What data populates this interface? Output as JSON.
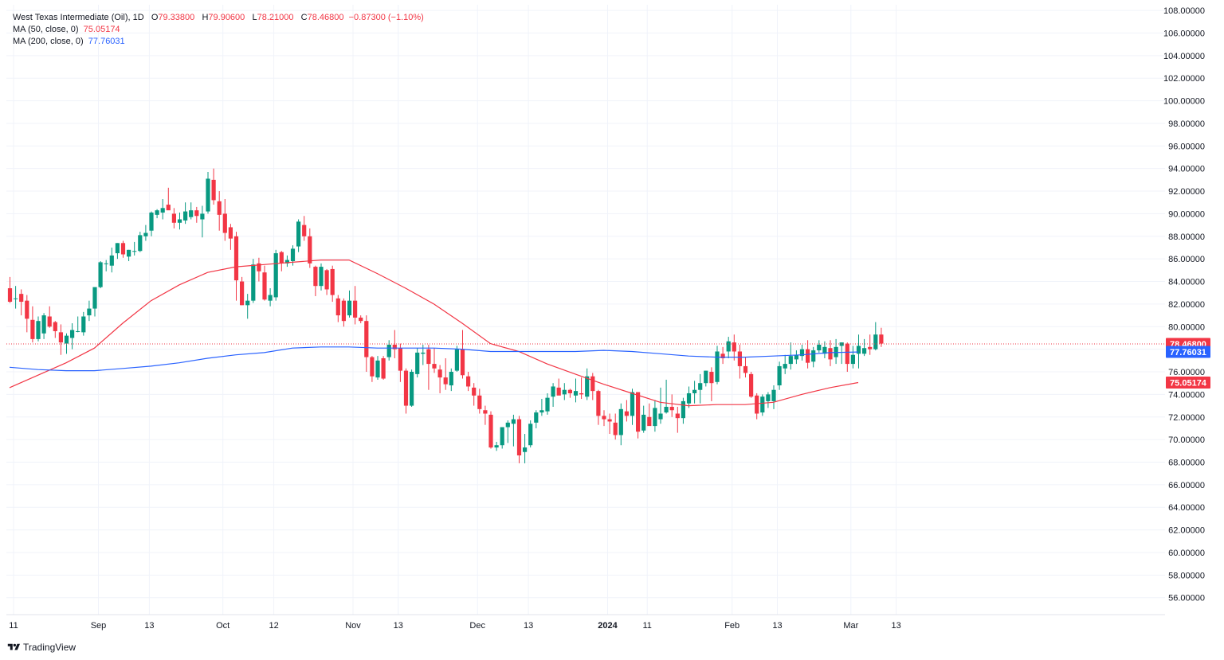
{
  "legend": {
    "symbol": "West Texas Intermediate (Oil), 1D",
    "open_label": "O",
    "open": "79.33800",
    "high_label": "H",
    "high": "79.90600",
    "low_label": "L",
    "low": "78.21000",
    "close_label": "C",
    "close": "78.46800",
    "change": "−0.87300 (−1.10%)",
    "ma50_label": "MA (50, close, 0)",
    "ma50_value": "75.05174",
    "ma200_label": "MA (200, close, 0)",
    "ma200_value": "77.76031"
  },
  "branding": {
    "logo_text": "TradingView"
  },
  "colors": {
    "up": "#089981",
    "down": "#f23645",
    "ma50": "#f23645",
    "ma200": "#2962ff",
    "grid": "#f0f3fa",
    "text": "#131722"
  },
  "chart_data": {
    "type": "candlestick",
    "title": "West Texas Intermediate (Oil), 1D",
    "ylim": [
      54.5,
      108.5
    ],
    "y_ticks": [
      "56.00000",
      "58.00000",
      "60.00000",
      "62.00000",
      "64.00000",
      "66.00000",
      "68.00000",
      "70.00000",
      "72.00000",
      "74.00000",
      "76.00000",
      "78.00000",
      "80.00000",
      "82.00000",
      "84.00000",
      "86.00000",
      "88.00000",
      "90.00000",
      "92.00000",
      "94.00000",
      "96.00000",
      "98.00000",
      "100.00000",
      "102.00000",
      "104.00000",
      "106.00000",
      "108.00000"
    ],
    "x_ticks": [
      {
        "label": "11",
        "bar": 0,
        "bold": false
      },
      {
        "label": "Sep",
        "bar": 15,
        "bold": false
      },
      {
        "label": "13",
        "bar": 24,
        "bold": false
      },
      {
        "label": "Oct",
        "bar": 37,
        "bold": false
      },
      {
        "label": "12",
        "bar": 46,
        "bold": false
      },
      {
        "label": "Nov",
        "bar": 60,
        "bold": false
      },
      {
        "label": "13",
        "bar": 68,
        "bold": false
      },
      {
        "label": "Dec",
        "bar": 82,
        "bold": false
      },
      {
        "label": "13",
        "bar": 91,
        "bold": false
      },
      {
        "label": "2024",
        "bar": 105,
        "bold": true
      },
      {
        "label": "11",
        "bar": 112,
        "bold": false
      },
      {
        "label": "Feb",
        "bar": 127,
        "bold": false
      },
      {
        "label": "13",
        "bar": 135,
        "bold": false
      },
      {
        "label": "Mar",
        "bar": 148,
        "bold": false
      },
      {
        "label": "13",
        "bar": 156,
        "bold": false
      }
    ],
    "candles": [
      {
        "o": 83.4,
        "h": 84.4,
        "l": 82.1,
        "c": 82.2
      },
      {
        "o": 82.5,
        "h": 83.6,
        "l": 81.6,
        "c": 82.5
      },
      {
        "o": 82.9,
        "h": 83.3,
        "l": 81.0,
        "c": 82.2
      },
      {
        "o": 82.3,
        "h": 82.8,
        "l": 79.5,
        "c": 80.7
      },
      {
        "o": 80.6,
        "h": 81.8,
        "l": 78.6,
        "c": 78.9
      },
      {
        "o": 78.9,
        "h": 80.9,
        "l": 78.7,
        "c": 80.5
      },
      {
        "o": 79.4,
        "h": 81.2,
        "l": 78.9,
        "c": 81.0
      },
      {
        "o": 80.9,
        "h": 81.8,
        "l": 79.9,
        "c": 80.0
      },
      {
        "o": 80.4,
        "h": 80.5,
        "l": 79.0,
        "c": 79.6
      },
      {
        "o": 79.5,
        "h": 80.2,
        "l": 77.5,
        "c": 78.6
      },
      {
        "o": 78.5,
        "h": 79.4,
        "l": 77.6,
        "c": 79.2
      },
      {
        "o": 79.0,
        "h": 80.3,
        "l": 78.0,
        "c": 79.7
      },
      {
        "o": 79.6,
        "h": 80.9,
        "l": 79.5,
        "c": 79.6
      },
      {
        "o": 79.5,
        "h": 81.3,
        "l": 79.2,
        "c": 80.9
      },
      {
        "o": 81.0,
        "h": 82.3,
        "l": 80.5,
        "c": 81.6
      },
      {
        "o": 81.6,
        "h": 83.1,
        "l": 80.9,
        "c": 83.5
      },
      {
        "o": 83.5,
        "h": 85.8,
        "l": 83.4,
        "c": 85.7
      },
      {
        "o": 85.6,
        "h": 85.9,
        "l": 84.9,
        "c": 85.6
      },
      {
        "o": 85.4,
        "h": 87.0,
        "l": 84.8,
        "c": 86.3
      },
      {
        "o": 86.5,
        "h": 87.4,
        "l": 86.0,
        "c": 87.4
      },
      {
        "o": 87.4,
        "h": 87.6,
        "l": 86.1,
        "c": 86.4
      },
      {
        "o": 86.2,
        "h": 86.8,
        "l": 85.8,
        "c": 86.8
      },
      {
        "o": 86.7,
        "h": 87.5,
        "l": 86.3,
        "c": 86.7
      },
      {
        "o": 86.7,
        "h": 88.4,
        "l": 86.6,
        "c": 88.1
      },
      {
        "o": 88.0,
        "h": 89.0,
        "l": 87.6,
        "c": 88.3
      },
      {
        "o": 88.5,
        "h": 90.2,
        "l": 88.0,
        "c": 90.1
      },
      {
        "o": 89.9,
        "h": 90.4,
        "l": 89.6,
        "c": 90.3
      },
      {
        "o": 90.1,
        "h": 91.3,
        "l": 89.5,
        "c": 90.5
      },
      {
        "o": 90.8,
        "h": 92.3,
        "l": 90.5,
        "c": 90.3
      },
      {
        "o": 90.0,
        "h": 90.5,
        "l": 88.7,
        "c": 89.2
      },
      {
        "o": 89.2,
        "h": 90.1,
        "l": 88.6,
        "c": 89.5
      },
      {
        "o": 89.4,
        "h": 91.0,
        "l": 89.1,
        "c": 90.2
      },
      {
        "o": 89.7,
        "h": 91.0,
        "l": 89.5,
        "c": 90.3
      },
      {
        "o": 90.3,
        "h": 90.6,
        "l": 89.2,
        "c": 89.8
      },
      {
        "o": 89.5,
        "h": 90.7,
        "l": 87.9,
        "c": 90.0
      },
      {
        "o": 90.2,
        "h": 93.7,
        "l": 90.0,
        "c": 93.1
      },
      {
        "o": 93.0,
        "h": 94.0,
        "l": 90.8,
        "c": 91.2
      },
      {
        "o": 91.1,
        "h": 92.0,
        "l": 88.5,
        "c": 89.9
      },
      {
        "o": 90.0,
        "h": 91.3,
        "l": 87.6,
        "c": 88.3
      },
      {
        "o": 88.8,
        "h": 89.1,
        "l": 86.8,
        "c": 87.8
      },
      {
        "o": 88.0,
        "h": 88.4,
        "l": 82.3,
        "c": 84.1
      },
      {
        "o": 84.0,
        "h": 84.4,
        "l": 81.9,
        "c": 81.9
      },
      {
        "o": 81.9,
        "h": 82.9,
        "l": 80.7,
        "c": 82.3
      },
      {
        "o": 82.3,
        "h": 86.0,
        "l": 82.1,
        "c": 85.5
      },
      {
        "o": 85.6,
        "h": 86.1,
        "l": 84.0,
        "c": 84.9
      },
      {
        "o": 84.8,
        "h": 85.4,
        "l": 82.3,
        "c": 82.4
      },
      {
        "o": 82.3,
        "h": 83.4,
        "l": 81.8,
        "c": 82.8
      },
      {
        "o": 82.6,
        "h": 86.8,
        "l": 82.3,
        "c": 86.5
      },
      {
        "o": 86.6,
        "h": 86.7,
        "l": 84.9,
        "c": 85.6
      },
      {
        "o": 85.6,
        "h": 86.3,
        "l": 85.3,
        "c": 85.9
      },
      {
        "o": 85.8,
        "h": 87.2,
        "l": 85.4,
        "c": 86.9
      },
      {
        "o": 87.1,
        "h": 89.5,
        "l": 86.6,
        "c": 89.3
      },
      {
        "o": 89.0,
        "h": 89.8,
        "l": 87.6,
        "c": 88.0
      },
      {
        "o": 88.0,
        "h": 88.7,
        "l": 85.2,
        "c": 85.6
      },
      {
        "o": 85.3,
        "h": 85.4,
        "l": 82.7,
        "c": 83.6
      },
      {
        "o": 83.6,
        "h": 85.6,
        "l": 83.2,
        "c": 85.3
      },
      {
        "o": 85.0,
        "h": 85.1,
        "l": 82.8,
        "c": 83.3
      },
      {
        "o": 85.1,
        "h": 85.4,
        "l": 82.2,
        "c": 82.8
      },
      {
        "o": 82.5,
        "h": 82.8,
        "l": 80.4,
        "c": 81.0
      },
      {
        "o": 82.3,
        "h": 82.5,
        "l": 80.0,
        "c": 80.5
      },
      {
        "o": 81.0,
        "h": 83.2,
        "l": 80.8,
        "c": 82.3
      },
      {
        "o": 82.3,
        "h": 83.6,
        "l": 80.2,
        "c": 80.8
      },
      {
        "o": 80.8,
        "h": 81.0,
        "l": 80.3,
        "c": 80.5
      },
      {
        "o": 80.5,
        "h": 81.0,
        "l": 76.0,
        "c": 77.3
      },
      {
        "o": 77.3,
        "h": 77.4,
        "l": 75.1,
        "c": 75.6
      },
      {
        "o": 75.5,
        "h": 77.4,
        "l": 75.3,
        "c": 77.0
      },
      {
        "o": 77.2,
        "h": 77.4,
        "l": 75.3,
        "c": 75.4
      },
      {
        "o": 77.3,
        "h": 78.8,
        "l": 77.0,
        "c": 78.4
      },
      {
        "o": 78.4,
        "h": 79.7,
        "l": 77.2,
        "c": 78.0
      },
      {
        "o": 78.1,
        "h": 78.5,
        "l": 75.1,
        "c": 76.1
      },
      {
        "o": 76.1,
        "h": 76.3,
        "l": 72.3,
        "c": 73.0
      },
      {
        "o": 73.0,
        "h": 76.2,
        "l": 72.9,
        "c": 76.0
      },
      {
        "o": 75.8,
        "h": 78.1,
        "l": 75.5,
        "c": 77.7
      },
      {
        "o": 77.6,
        "h": 78.4,
        "l": 76.6,
        "c": 77.7
      },
      {
        "o": 78.0,
        "h": 78.4,
        "l": 74.4,
        "c": 76.7
      },
      {
        "o": 76.7,
        "h": 78.1,
        "l": 75.9,
        "c": 76.3
      },
      {
        "o": 76.2,
        "h": 76.6,
        "l": 74.1,
        "c": 75.5
      },
      {
        "o": 75.5,
        "h": 77.2,
        "l": 74.4,
        "c": 74.9
      },
      {
        "o": 74.8,
        "h": 76.3,
        "l": 74.3,
        "c": 76.0
      },
      {
        "o": 76.1,
        "h": 78.3,
        "l": 76.0,
        "c": 78.0
      },
      {
        "o": 78.0,
        "h": 79.7,
        "l": 75.4,
        "c": 75.7
      },
      {
        "o": 75.6,
        "h": 76.0,
        "l": 74.3,
        "c": 74.7
      },
      {
        "o": 74.6,
        "h": 75.0,
        "l": 73.0,
        "c": 73.9
      },
      {
        "o": 73.9,
        "h": 74.5,
        "l": 72.3,
        "c": 72.7
      },
      {
        "o": 72.6,
        "h": 73.0,
        "l": 71.3,
        "c": 72.3
      },
      {
        "o": 72.2,
        "h": 72.5,
        "l": 69.2,
        "c": 69.3
      },
      {
        "o": 69.3,
        "h": 69.8,
        "l": 69.0,
        "c": 69.5
      },
      {
        "o": 69.5,
        "h": 71.1,
        "l": 69.2,
        "c": 71.1
      },
      {
        "o": 71.1,
        "h": 71.7,
        "l": 69.7,
        "c": 71.5
      },
      {
        "o": 71.4,
        "h": 72.2,
        "l": 69.4,
        "c": 71.8
      },
      {
        "o": 71.8,
        "h": 72.1,
        "l": 67.9,
        "c": 68.6
      },
      {
        "o": 68.9,
        "h": 70.5,
        "l": 67.9,
        "c": 69.3
      },
      {
        "o": 69.5,
        "h": 71.7,
        "l": 69.3,
        "c": 71.4
      },
      {
        "o": 71.5,
        "h": 72.6,
        "l": 71.0,
        "c": 72.4
      },
      {
        "o": 72.4,
        "h": 73.6,
        "l": 72.1,
        "c": 72.6
      },
      {
        "o": 72.5,
        "h": 74.1,
        "l": 72.2,
        "c": 73.7
      },
      {
        "o": 73.8,
        "h": 75.0,
        "l": 72.9,
        "c": 74.7
      },
      {
        "o": 74.6,
        "h": 75.4,
        "l": 74.0,
        "c": 73.9
      },
      {
        "o": 74.0,
        "h": 75.0,
        "l": 73.5,
        "c": 74.4
      },
      {
        "o": 74.4,
        "h": 74.5,
        "l": 73.7,
        "c": 74.1
      },
      {
        "o": 73.9,
        "h": 75.4,
        "l": 73.3,
        "c": 74.3
      },
      {
        "o": 74.1,
        "h": 75.5,
        "l": 73.6,
        "c": 74.0
      },
      {
        "o": 73.8,
        "h": 76.3,
        "l": 73.5,
        "c": 75.6
      },
      {
        "o": 75.6,
        "h": 75.9,
        "l": 73.5,
        "c": 74.3
      },
      {
        "o": 74.3,
        "h": 74.4,
        "l": 71.3,
        "c": 72.1
      },
      {
        "o": 72.1,
        "h": 72.6,
        "l": 71.2,
        "c": 71.8
      },
      {
        "o": 71.8,
        "h": 72.3,
        "l": 70.5,
        "c": 71.6
      },
      {
        "o": 71.5,
        "h": 72.3,
        "l": 70.0,
        "c": 70.4
      },
      {
        "o": 70.4,
        "h": 73.2,
        "l": 69.5,
        "c": 72.7
      },
      {
        "o": 72.5,
        "h": 73.5,
        "l": 71.6,
        "c": 72.1
      },
      {
        "o": 72.1,
        "h": 74.5,
        "l": 71.3,
        "c": 74.2
      },
      {
        "o": 74.2,
        "h": 74.2,
        "l": 70.1,
        "c": 70.7
      },
      {
        "o": 70.8,
        "h": 73.0,
        "l": 70.6,
        "c": 72.2
      },
      {
        "o": 72.0,
        "h": 73.2,
        "l": 71.7,
        "c": 71.2
      },
      {
        "o": 71.2,
        "h": 73.5,
        "l": 70.7,
        "c": 72.8
      },
      {
        "o": 71.8,
        "h": 74.6,
        "l": 71.4,
        "c": 72.3
      },
      {
        "o": 72.4,
        "h": 75.3,
        "l": 72.3,
        "c": 72.9
      },
      {
        "o": 72.9,
        "h": 74.0,
        "l": 72.0,
        "c": 72.6
      },
      {
        "o": 72.3,
        "h": 72.9,
        "l": 70.6,
        "c": 71.9
      },
      {
        "o": 71.9,
        "h": 73.7,
        "l": 71.4,
        "c": 73.4
      },
      {
        "o": 73.2,
        "h": 74.7,
        "l": 72.8,
        "c": 74.1
      },
      {
        "o": 74.1,
        "h": 75.2,
        "l": 73.2,
        "c": 74.4
      },
      {
        "o": 74.4,
        "h": 75.8,
        "l": 73.2,
        "c": 75.0
      },
      {
        "o": 75.0,
        "h": 76.1,
        "l": 74.7,
        "c": 76.1
      },
      {
        "o": 76.0,
        "h": 76.4,
        "l": 73.4,
        "c": 75.0
      },
      {
        "o": 75.1,
        "h": 78.3,
        "l": 74.9,
        "c": 77.8
      },
      {
        "o": 77.6,
        "h": 78.2,
        "l": 76.7,
        "c": 77.2
      },
      {
        "o": 77.8,
        "h": 79.1,
        "l": 77.2,
        "c": 78.7
      },
      {
        "o": 78.6,
        "h": 79.3,
        "l": 77.0,
        "c": 77.8
      },
      {
        "o": 77.8,
        "h": 78.4,
        "l": 75.4,
        "c": 76.5
      },
      {
        "o": 76.5,
        "h": 77.3,
        "l": 75.5,
        "c": 75.9
      },
      {
        "o": 75.8,
        "h": 76.0,
        "l": 73.7,
        "c": 73.8
      },
      {
        "o": 73.9,
        "h": 74.1,
        "l": 71.8,
        "c": 72.3
      },
      {
        "o": 72.4,
        "h": 74.0,
        "l": 72.1,
        "c": 73.8
      },
      {
        "o": 73.4,
        "h": 74.2,
        "l": 72.8,
        "c": 74.0
      },
      {
        "o": 73.4,
        "h": 74.8,
        "l": 72.7,
        "c": 74.4
      },
      {
        "o": 74.8,
        "h": 76.9,
        "l": 74.4,
        "c": 76.5
      },
      {
        "o": 76.3,
        "h": 77.5,
        "l": 75.8,
        "c": 76.7
      },
      {
        "o": 76.7,
        "h": 78.6,
        "l": 76.2,
        "c": 77.4
      },
      {
        "o": 77.1,
        "h": 77.9,
        "l": 76.7,
        "c": 77.5
      },
      {
        "o": 77.4,
        "h": 78.4,
        "l": 77.0,
        "c": 78.0
      },
      {
        "o": 78.0,
        "h": 78.8,
        "l": 76.3,
        "c": 76.8
      },
      {
        "o": 76.9,
        "h": 78.2,
        "l": 76.4,
        "c": 77.9
      },
      {
        "o": 77.9,
        "h": 78.8,
        "l": 77.7,
        "c": 78.4
      },
      {
        "o": 77.6,
        "h": 78.7,
        "l": 77.2,
        "c": 78.2
      },
      {
        "o": 78.1,
        "h": 78.8,
        "l": 76.5,
        "c": 77.1
      },
      {
        "o": 77.3,
        "h": 78.9,
        "l": 76.7,
        "c": 78.2
      },
      {
        "o": 78.3,
        "h": 78.6,
        "l": 76.7,
        "c": 78.6
      },
      {
        "o": 78.5,
        "h": 78.6,
        "l": 76.0,
        "c": 76.7
      },
      {
        "o": 76.7,
        "h": 78.3,
        "l": 76.3,
        "c": 77.5
      },
      {
        "o": 77.6,
        "h": 79.3,
        "l": 76.3,
        "c": 78.3
      },
      {
        "o": 77.6,
        "h": 78.9,
        "l": 77.4,
        "c": 78.1
      },
      {
        "o": 78.2,
        "h": 79.3,
        "l": 77.5,
        "c": 78.0
      },
      {
        "o": 78.0,
        "h": 80.4,
        "l": 77.9,
        "c": 79.3
      },
      {
        "o": 79.3,
        "h": 79.9,
        "l": 78.2,
        "c": 78.5
      }
    ],
    "series": [
      {
        "name": "MA (50, close, 0)",
        "color": "#f23645",
        "x": [
          0,
          5,
          10,
          15,
          20,
          25,
          30,
          35,
          40,
          45,
          50,
          55,
          60,
          65,
          70,
          75,
          80,
          85,
          90,
          95,
          100,
          105,
          110,
          115,
          120,
          125,
          130,
          135,
          140,
          145,
          150
        ],
        "values": [
          74.6,
          75.7,
          76.8,
          78.1,
          80.3,
          82.3,
          83.7,
          84.8,
          85.3,
          85.5,
          85.7,
          85.9,
          85.9,
          84.7,
          83.4,
          82.0,
          80.3,
          78.5,
          77.8,
          76.7,
          75.8,
          74.9,
          74.1,
          73.3,
          73.0,
          73.1,
          73.1,
          73.3,
          74.0,
          74.6,
          75.05
        ]
      },
      {
        "name": "MA (200, close, 0)",
        "color": "#2962ff",
        "x": [
          0,
          5,
          10,
          15,
          20,
          25,
          30,
          35,
          40,
          45,
          50,
          55,
          60,
          65,
          70,
          75,
          80,
          85,
          90,
          95,
          100,
          105,
          110,
          115,
          120,
          125,
          130,
          135,
          140,
          145,
          150
        ],
        "values": [
          76.4,
          76.2,
          76.1,
          76.1,
          76.3,
          76.5,
          76.8,
          77.2,
          77.5,
          77.7,
          78.1,
          78.2,
          78.2,
          78.1,
          78.1,
          78.1,
          78.0,
          77.8,
          77.8,
          77.8,
          77.8,
          77.9,
          77.8,
          77.6,
          77.4,
          77.3,
          77.3,
          77.4,
          77.5,
          77.7,
          77.76
        ]
      }
    ],
    "price_labels": [
      {
        "name": "last-price",
        "value": 78.468,
        "text": "78.46800",
        "color": "#f23645"
      },
      {
        "name": "ma200-value",
        "value": 77.76031,
        "text": "77.76031",
        "color": "#2962ff"
      },
      {
        "name": "ma50-value",
        "value": 75.05174,
        "text": "75.05174",
        "color": "#f23645"
      }
    ]
  }
}
